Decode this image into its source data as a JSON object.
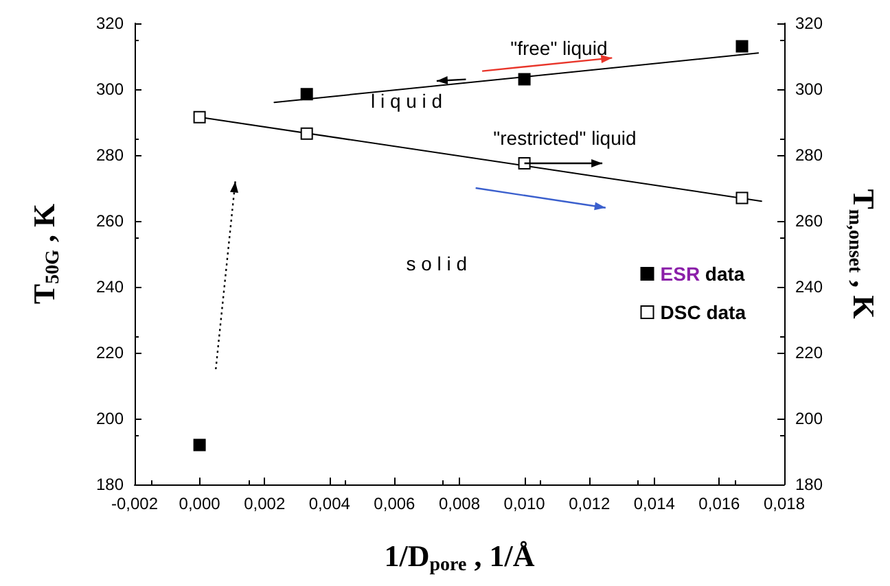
{
  "chart_data": {
    "type": "scatter",
    "xlabel": "1/D$_{pore}$ , 1/Å",
    "ylabel": "T$_{50G}$ , K",
    "y2label": "T$_{m,onset}$ , K",
    "xlim": [
      -0.002,
      0.018
    ],
    "xticks": [
      {
        "value": -0.002,
        "label": "-0,002"
      },
      {
        "value": 0,
        "label": "0,000"
      },
      {
        "value": 0.002,
        "label": "0,002"
      },
      {
        "value": 0.004,
        "label": "0,004"
      },
      {
        "value": 0.006,
        "label": "0,006"
      },
      {
        "value": 0.008,
        "label": "0,008"
      },
      {
        "value": 0.01,
        "label": "0,010"
      },
      {
        "value": 0.012,
        "label": "0,012"
      },
      {
        "value": 0.014,
        "label": "0,014"
      },
      {
        "value": 0.016,
        "label": "0,016"
      },
      {
        "value": 0.018,
        "label": "0,018"
      }
    ],
    "ylim": [
      180,
      320
    ],
    "yticks": [
      180,
      200,
      220,
      240,
      260,
      280,
      300,
      320
    ],
    "y2lim": [
      180,
      320
    ],
    "y2ticks": [
      180,
      200,
      220,
      240,
      260,
      280,
      300,
      320
    ],
    "series": [
      {
        "name": "ESR data",
        "marker": "square",
        "color": "#000000",
        "x": [
          0,
          0.0033,
          0.01,
          0.0167
        ],
        "values": [
          192,
          298.5,
          303,
          313
        ]
      },
      {
        "name": "DSC data",
        "marker": "square",
        "color": "#ffffff",
        "x": [
          0,
          0.0033,
          0.01,
          0.0167
        ],
        "values": [
          291.5,
          286.5,
          277.5,
          267
        ]
      },
      {
        "type": "line",
        "marker": "none",
        "color": "#000000",
        "x": [
          0.0023,
          0.0172
        ],
        "values": [
          296,
          311
        ]
      },
      {
        "type": "line",
        "marker": "none",
        "color": "#000000",
        "x": [
          0,
          0.0173
        ],
        "values": [
          291.5,
          266
        ]
      }
    ],
    "annotations": [
      "\"free\" liquid",
      "l i q u i d",
      "\"restricted\" liquid",
      "s o l i d"
    ],
    "legend": "right",
    "grid": false
  }
}
